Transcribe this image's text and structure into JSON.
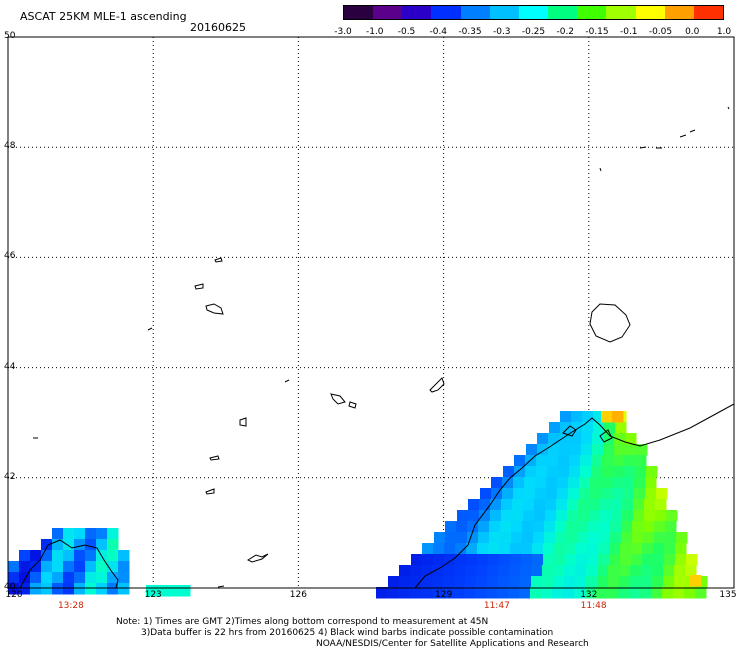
{
  "title": "ASCAT 25KM MLE-1 ascending",
  "date": "20160625",
  "colorbar": {
    "ticks": [
      "-3.0",
      "-1.0",
      "-0.5",
      "-0.4",
      "-0.35",
      "-0.3",
      "-0.25",
      "-0.2",
      "-0.15",
      "-0.1",
      "-0.05",
      "0.0",
      "1.0"
    ],
    "colors": [
      "#2a0040",
      "#5a008a",
      "#2a00c8",
      "#0030ff",
      "#0080ff",
      "#00c0ff",
      "#00ffff",
      "#00ff80",
      "#40ff00",
      "#a0ff00",
      "#ffff00",
      "#ffa000",
      "#ff3000"
    ]
  },
  "map": {
    "lat_labels": [
      "50",
      "48",
      "46",
      "44",
      "42",
      "40"
    ],
    "lon_labels": [
      "120",
      "123",
      "126",
      "129",
      "132",
      "135"
    ],
    "time_labels": [
      {
        "lon": 121.3,
        "text": "13:28"
      },
      {
        "lon": 130.1,
        "text": "11:47"
      },
      {
        "lon": 132.1,
        "text": "11:48"
      }
    ]
  },
  "notes": [
    "Note: 1) Times are GMT 2)Times along bottom correspond to measurement at 45N",
    "3)Data buffer is 22 hrs from 20160625 4) Black wind barbs indicate possible contamination",
    "NOAA/NESDIS/Center for Satellite Applications and Research"
  ]
}
